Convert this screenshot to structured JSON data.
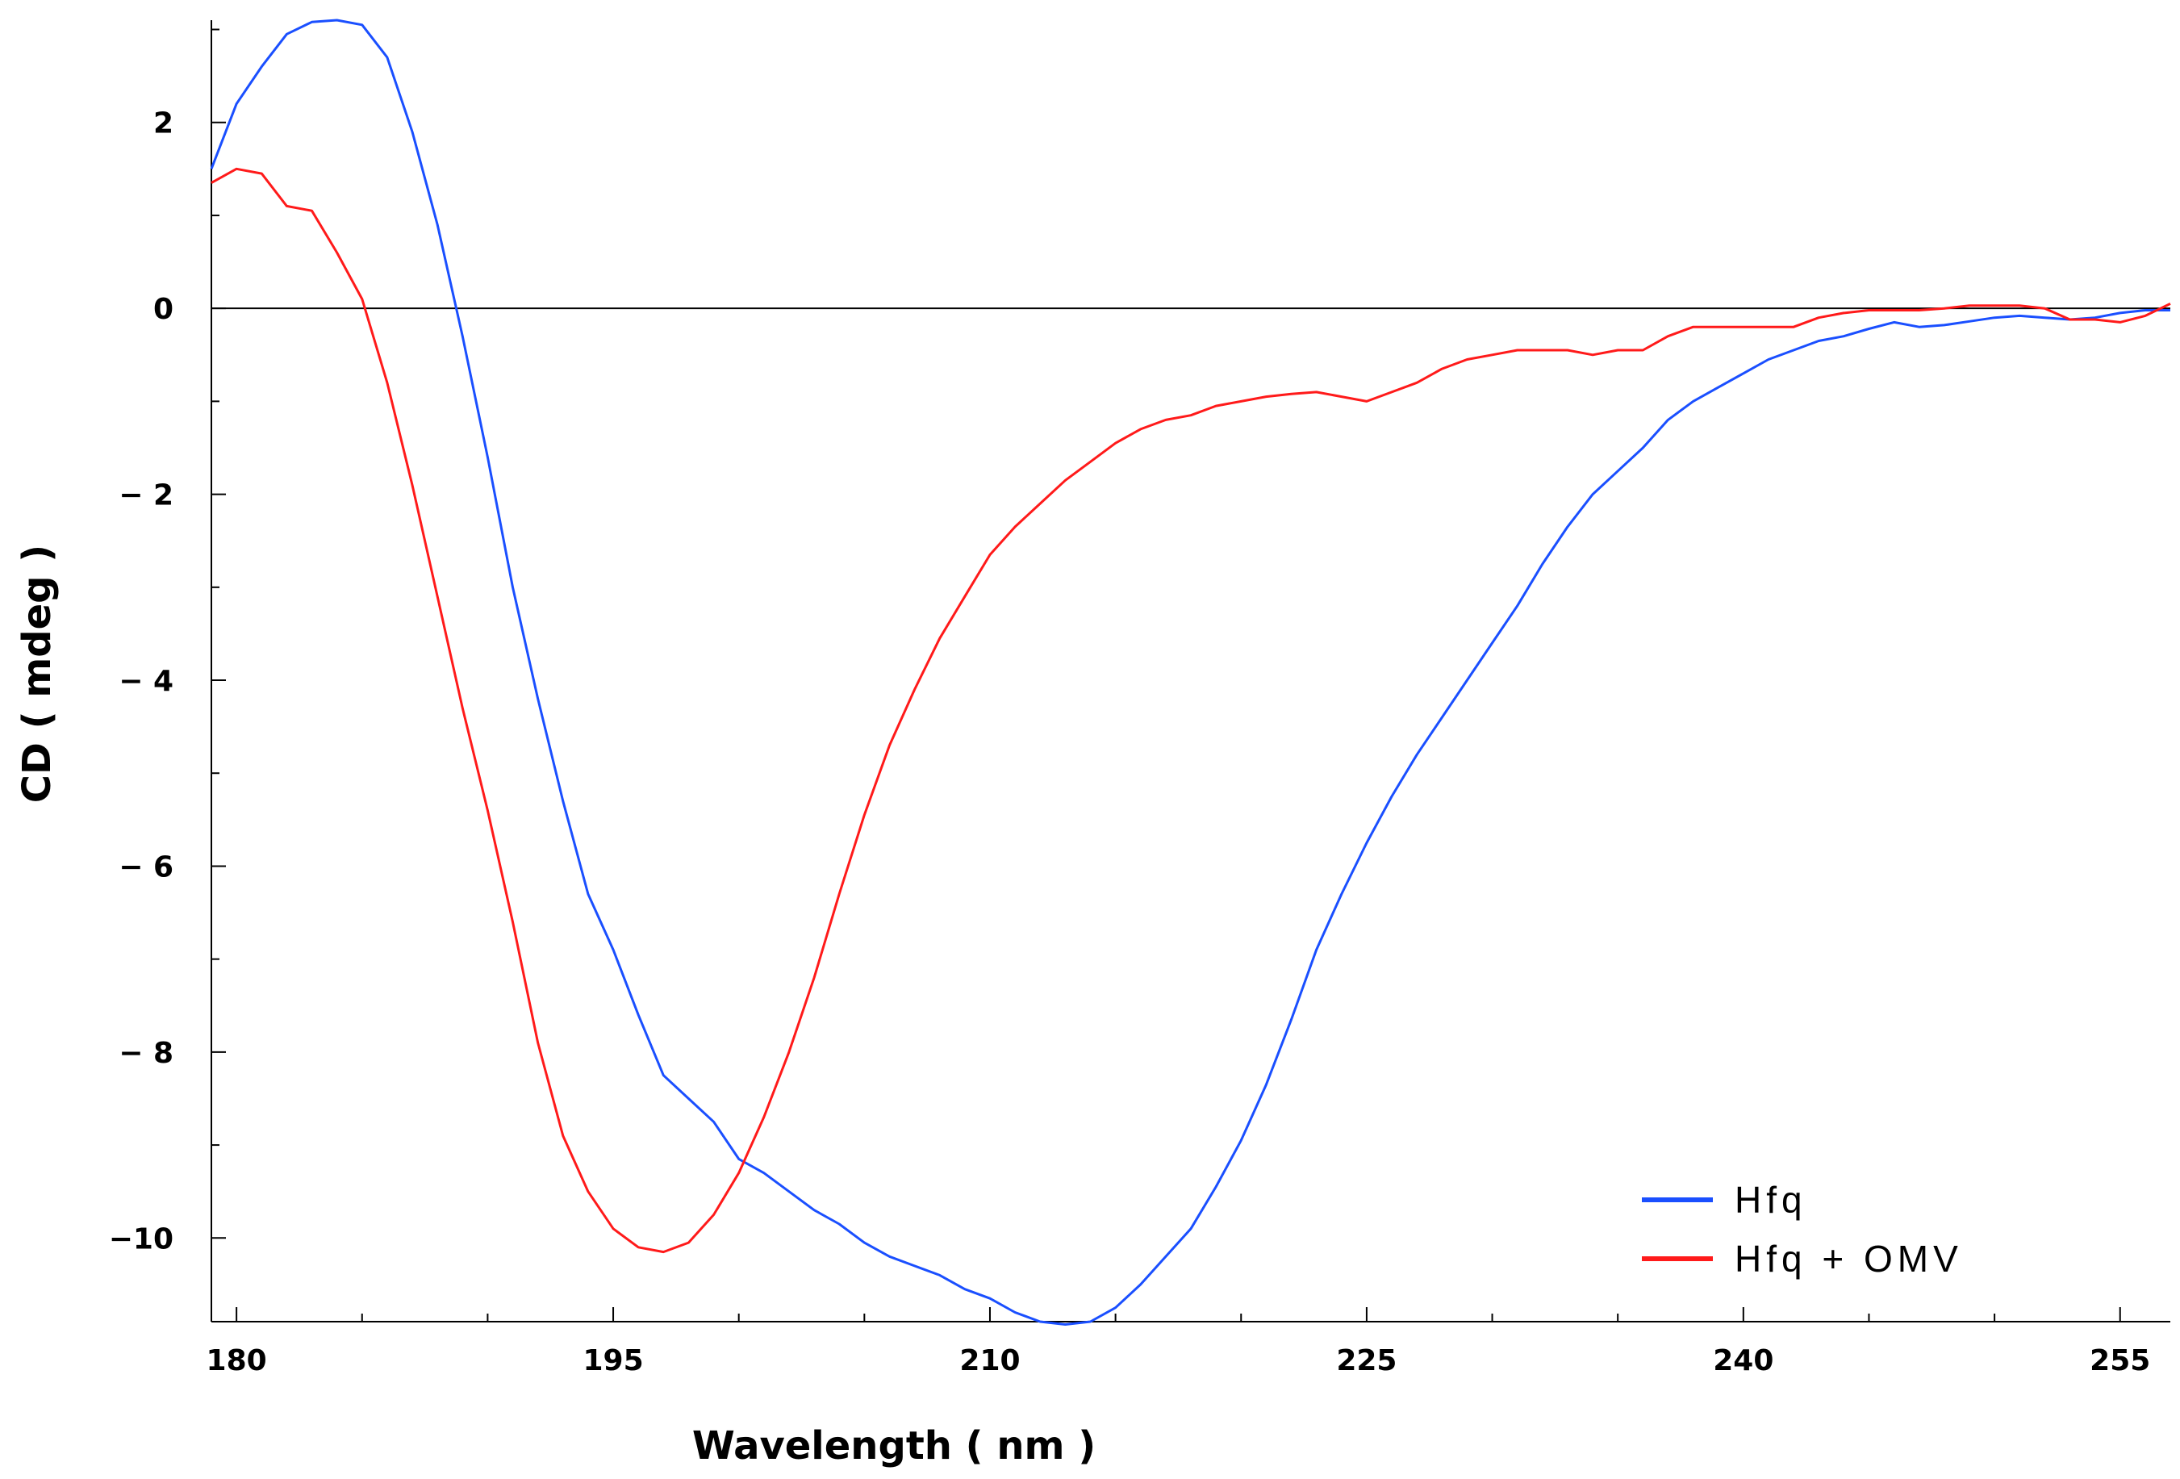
{
  "chart_data": {
    "type": "line",
    "xlabel": "Wavelength ( nm )",
    "ylabel": "CD ( mdeg )",
    "xlim": [
      179,
      257
    ],
    "ylim": [
      -10.9,
      3.1
    ],
    "x_ticks": [
      180,
      195,
      210,
      225,
      240,
      255
    ],
    "x_tick_labels": [
      "180",
      "195",
      "210",
      "225",
      "240",
      "255"
    ],
    "y_ticks": [
      2,
      0,
      -2,
      -4,
      -6,
      -8,
      -10
    ],
    "y_tick_labels": [
      "2",
      "0",
      "− 2",
      "− 4",
      "− 6",
      "− 8",
      "−10"
    ],
    "x_minor_step": 5,
    "y_minor_step": 1,
    "zero_line": true,
    "grid": false,
    "legend_position": "bottom-right",
    "series": [
      {
        "name": "Hfq",
        "color": "#1a4fff",
        "points": [
          [
            179,
            1.5
          ],
          [
            180,
            2.2
          ],
          [
            181,
            2.6
          ],
          [
            182,
            2.95
          ],
          [
            183,
            3.08
          ],
          [
            184,
            3.1
          ],
          [
            185,
            3.05
          ],
          [
            186,
            2.7
          ],
          [
            187,
            1.9
          ],
          [
            188,
            0.9
          ],
          [
            189,
            -0.3
          ],
          [
            190,
            -1.6
          ],
          [
            191,
            -3.0
          ],
          [
            192,
            -4.2
          ],
          [
            193,
            -5.3
          ],
          [
            194,
            -6.3
          ],
          [
            195,
            -6.9
          ],
          [
            196,
            -7.6
          ],
          [
            197,
            -8.25
          ],
          [
            198,
            -8.5
          ],
          [
            199,
            -8.75
          ],
          [
            200,
            -9.15
          ],
          [
            201,
            -9.3
          ],
          [
            202,
            -9.5
          ],
          [
            203,
            -9.7
          ],
          [
            204,
            -9.85
          ],
          [
            205,
            -10.05
          ],
          [
            206,
            -10.2
          ],
          [
            207,
            -10.3
          ],
          [
            208,
            -10.4
          ],
          [
            209,
            -10.55
          ],
          [
            210,
            -10.65
          ],
          [
            211,
            -10.8
          ],
          [
            212,
            -10.9
          ],
          [
            213,
            -10.93
          ],
          [
            214,
            -10.9
          ],
          [
            215,
            -10.75
          ],
          [
            216,
            -10.5
          ],
          [
            217,
            -10.2
          ],
          [
            218,
            -9.9
          ],
          [
            219,
            -9.45
          ],
          [
            220,
            -8.95
          ],
          [
            221,
            -8.35
          ],
          [
            222,
            -7.65
          ],
          [
            223,
            -6.9
          ],
          [
            224,
            -6.3
          ],
          [
            225,
            -5.75
          ],
          [
            226,
            -5.25
          ],
          [
            227,
            -4.8
          ],
          [
            228,
            -4.4
          ],
          [
            229,
            -4.0
          ],
          [
            230,
            -3.6
          ],
          [
            231,
            -3.2
          ],
          [
            232,
            -2.75
          ],
          [
            233,
            -2.35
          ],
          [
            234,
            -2.0
          ],
          [
            235,
            -1.75
          ],
          [
            236,
            -1.5
          ],
          [
            237,
            -1.2
          ],
          [
            238,
            -1.0
          ],
          [
            239,
            -0.85
          ],
          [
            240,
            -0.7
          ],
          [
            241,
            -0.55
          ],
          [
            242,
            -0.45
          ],
          [
            243,
            -0.35
          ],
          [
            244,
            -0.3
          ],
          [
            245,
            -0.22
          ],
          [
            246,
            -0.15
          ],
          [
            247,
            -0.2
          ],
          [
            248,
            -0.18
          ],
          [
            249,
            -0.14
          ],
          [
            250,
            -0.1
          ],
          [
            251,
            -0.08
          ],
          [
            252,
            -0.1
          ],
          [
            253,
            -0.12
          ],
          [
            254,
            -0.1
          ],
          [
            255,
            -0.05
          ],
          [
            256,
            -0.02
          ],
          [
            257,
            -0.02
          ]
        ]
      },
      {
        "name": "Hfq + OMV",
        "color": "#ff1a1a",
        "points": [
          [
            179,
            1.35
          ],
          [
            180,
            1.5
          ],
          [
            181,
            1.45
          ],
          [
            182,
            1.1
          ],
          [
            183,
            1.05
          ],
          [
            184,
            0.6
          ],
          [
            185,
            0.1
          ],
          [
            186,
            -0.8
          ],
          [
            187,
            -1.9
          ],
          [
            188,
            -3.1
          ],
          [
            189,
            -4.3
          ],
          [
            190,
            -5.4
          ],
          [
            191,
            -6.6
          ],
          [
            192,
            -7.9
          ],
          [
            193,
            -8.9
          ],
          [
            194,
            -9.5
          ],
          [
            195,
            -9.9
          ],
          [
            196,
            -10.1
          ],
          [
            197,
            -10.15
          ],
          [
            198,
            -10.05
          ],
          [
            199,
            -9.75
          ],
          [
            200,
            -9.3
          ],
          [
            201,
            -8.7
          ],
          [
            202,
            -8.0
          ],
          [
            203,
            -7.2
          ],
          [
            204,
            -6.3
          ],
          [
            205,
            -5.45
          ],
          [
            206,
            -4.7
          ],
          [
            207,
            -4.1
          ],
          [
            208,
            -3.55
          ],
          [
            209,
            -3.1
          ],
          [
            210,
            -2.65
          ],
          [
            211,
            -2.35
          ],
          [
            212,
            -2.1
          ],
          [
            213,
            -1.85
          ],
          [
            214,
            -1.65
          ],
          [
            215,
            -1.45
          ],
          [
            216,
            -1.3
          ],
          [
            217,
            -1.2
          ],
          [
            218,
            -1.15
          ],
          [
            219,
            -1.05
          ],
          [
            220,
            -1.0
          ],
          [
            221,
            -0.95
          ],
          [
            222,
            -0.92
          ],
          [
            223,
            -0.9
          ],
          [
            224,
            -0.95
          ],
          [
            225,
            -1.0
          ],
          [
            226,
            -0.9
          ],
          [
            227,
            -0.8
          ],
          [
            228,
            -0.65
          ],
          [
            229,
            -0.55
          ],
          [
            230,
            -0.5
          ],
          [
            231,
            -0.45
          ],
          [
            232,
            -0.45
          ],
          [
            233,
            -0.45
          ],
          [
            234,
            -0.5
          ],
          [
            235,
            -0.45
          ],
          [
            236,
            -0.45
          ],
          [
            237,
            -0.3
          ],
          [
            238,
            -0.2
          ],
          [
            239,
            -0.2
          ],
          [
            240,
            -0.2
          ],
          [
            241,
            -0.2
          ],
          [
            242,
            -0.2
          ],
          [
            243,
            -0.1
          ],
          [
            244,
            -0.05
          ],
          [
            245,
            -0.02
          ],
          [
            246,
            -0.02
          ],
          [
            247,
            -0.02
          ],
          [
            248,
            0.0
          ],
          [
            249,
            0.03
          ],
          [
            250,
            0.03
          ],
          [
            251,
            0.03
          ],
          [
            252,
            0.0
          ],
          [
            253,
            -0.12
          ],
          [
            254,
            -0.12
          ],
          [
            255,
            -0.15
          ],
          [
            256,
            -0.08
          ],
          [
            257,
            0.05
          ]
        ]
      }
    ]
  }
}
